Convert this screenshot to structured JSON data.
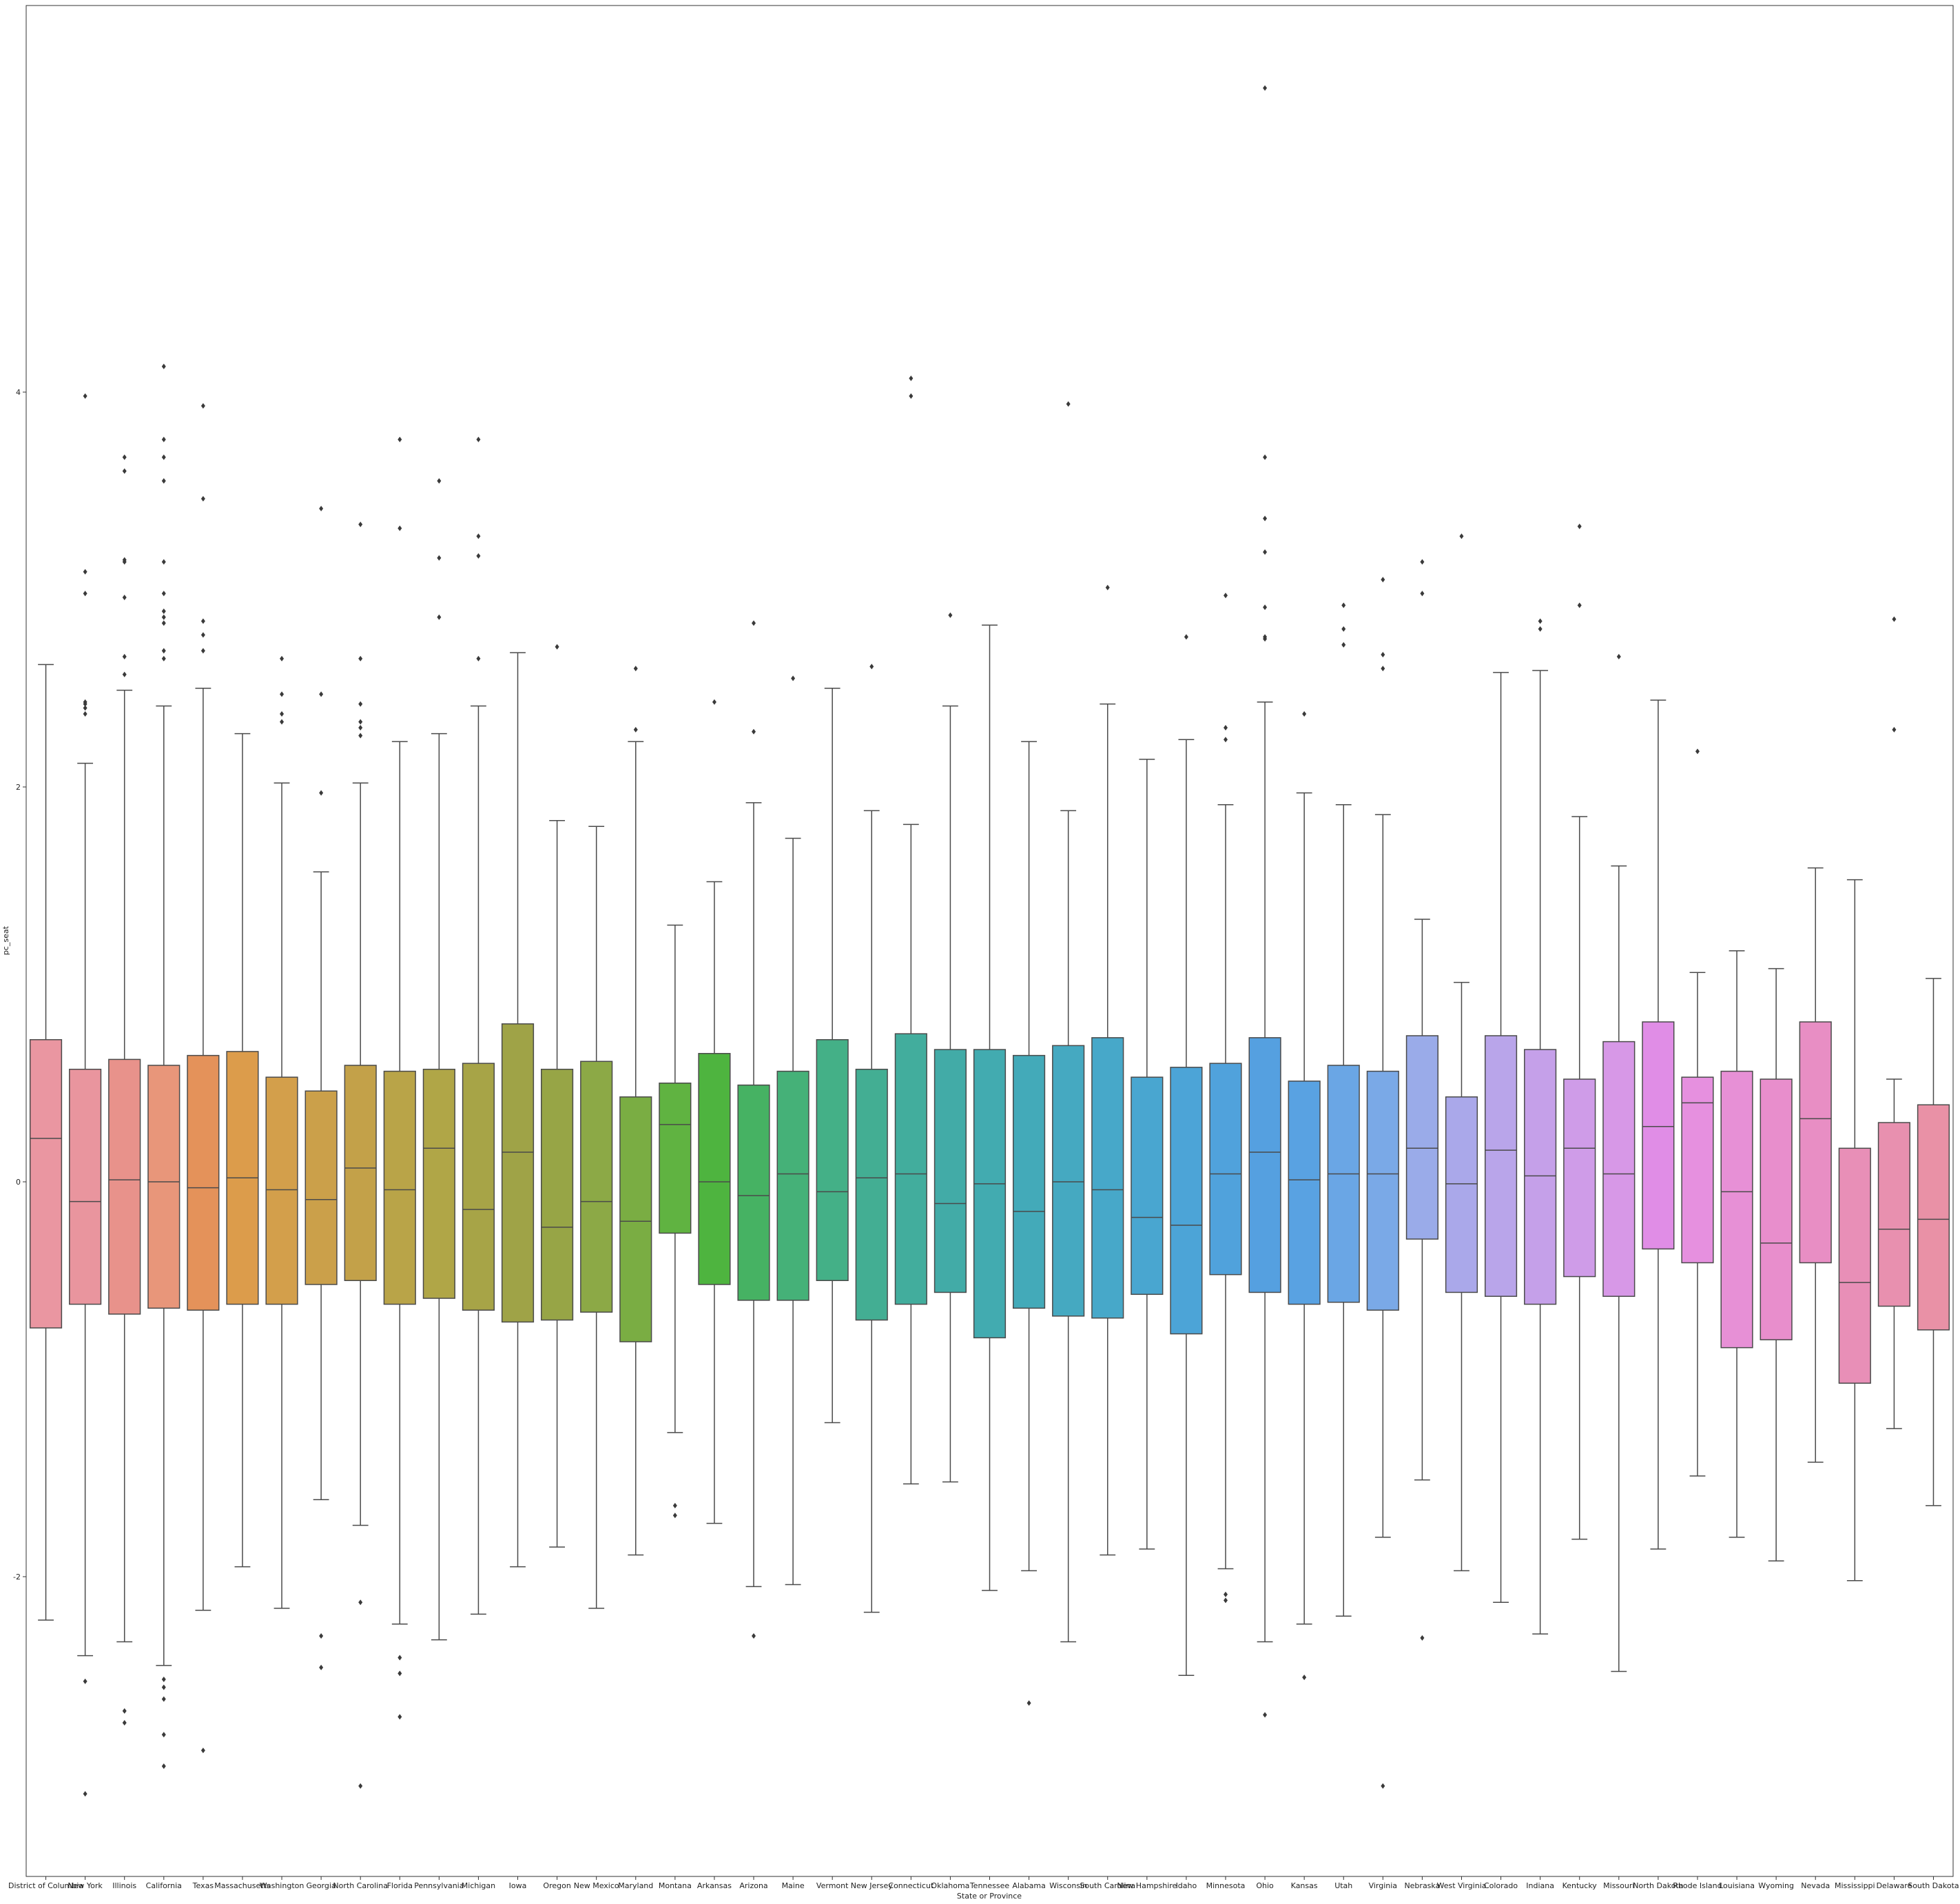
{
  "chart_data": {
    "type": "box",
    "title": "",
    "xlabel": "State or Province",
    "ylabel": "pc_seat",
    "ylim": [
      -3.5,
      5.9
    ],
    "yticks": [
      -2,
      0,
      2,
      4
    ],
    "grid": false,
    "categories": [
      {
        "name": "District of Columbia",
        "color": "#ea96a1",
        "q1": -0.74,
        "median": 0.22,
        "q3": 0.72,
        "wlo": -2.22,
        "whi": 2.62,
        "outliers": []
      },
      {
        "name": "New York",
        "color": "#e9959e",
        "q1": -0.62,
        "median": -0.1,
        "q3": 0.57,
        "wlo": -2.4,
        "whi": 2.12,
        "outliers": [
          2.4,
          2.37,
          2.43,
          2.42,
          2.98,
          3.09,
          3.98,
          -2.53,
          -3.1
        ]
      },
      {
        "name": "Illinois",
        "color": "#e8928b",
        "q1": -0.67,
        "median": 0.01,
        "q3": 0.62,
        "wlo": -2.33,
        "whi": 2.49,
        "outliers": [
          2.57,
          2.66,
          2.96,
          3.14,
          3.15,
          3.6,
          3.67,
          -2.68,
          -2.74
        ]
      },
      {
        "name": "California",
        "color": "#e8967a",
        "q1": -0.64,
        "median": 0.0,
        "q3": 0.59,
        "wlo": -2.45,
        "whi": 2.41,
        "outliers": [
          2.65,
          2.69,
          2.83,
          2.86,
          2.89,
          2.98,
          3.14,
          3.55,
          3.67,
          3.76,
          4.13,
          -2.52,
          -2.56,
          -2.62,
          -2.8,
          -2.96
        ]
      },
      {
        "name": "Texas",
        "color": "#e4925a",
        "q1": -0.65,
        "median": -0.03,
        "q3": 0.64,
        "wlo": -2.17,
        "whi": 2.5,
        "outliers": [
          2.69,
          2.77,
          2.84,
          3.46,
          3.93,
          -2.88
        ]
      },
      {
        "name": "Massachusetts",
        "color": "#dc9c4b",
        "q1": -0.62,
        "median": 0.02,
        "q3": 0.66,
        "wlo": -1.95,
        "whi": 2.27,
        "outliers": []
      },
      {
        "name": "Washington",
        "color": "#d39f4b",
        "q1": -0.62,
        "median": -0.04,
        "q3": 0.53,
        "wlo": -2.16,
        "whi": 2.02,
        "outliers": [
          2.33,
          2.37,
          2.47,
          2.65
        ]
      },
      {
        "name": "Georgia",
        "color": "#cba04a",
        "q1": -0.52,
        "median": -0.09,
        "q3": 0.46,
        "wlo": -1.61,
        "whi": 1.57,
        "outliers": [
          1.97,
          2.47,
          3.41,
          -2.3,
          -2.46
        ]
      },
      {
        "name": "North Carolina",
        "color": "#c3a149",
        "q1": -0.5,
        "median": 0.07,
        "q3": 0.59,
        "wlo": -1.74,
        "whi": 2.02,
        "outliers": [
          2.26,
          2.3,
          2.33,
          2.42,
          2.65,
          3.33,
          -2.13,
          -3.06
        ]
      },
      {
        "name": "Florida",
        "color": "#b9a448",
        "q1": -0.62,
        "median": -0.04,
        "q3": 0.56,
        "wlo": -2.24,
        "whi": 2.23,
        "outliers": [
          3.31,
          3.76,
          -2.41,
          -2.49,
          -2.71
        ]
      },
      {
        "name": "Pennsylvania",
        "color": "#b0a647",
        "q1": -0.59,
        "median": 0.17,
        "q3": 0.57,
        "wlo": -2.32,
        "whi": 2.27,
        "outliers": [
          2.86,
          3.16,
          3.55
        ]
      },
      {
        "name": "Michigan",
        "color": "#a7a447",
        "q1": -0.65,
        "median": -0.14,
        "q3": 0.6,
        "wlo": -2.19,
        "whi": 2.41,
        "outliers": [
          2.65,
          3.17,
          3.27,
          3.76
        ]
      },
      {
        "name": "Iowa",
        "color": "#9fa347",
        "q1": -0.71,
        "median": 0.15,
        "q3": 0.8,
        "wlo": -1.95,
        "whi": 2.68,
        "outliers": []
      },
      {
        "name": "Oregon",
        "color": "#97a546",
        "q1": -0.7,
        "median": -0.23,
        "q3": 0.57,
        "wlo": -1.85,
        "whi": 1.83,
        "outliers": [
          2.71
        ]
      },
      {
        "name": "New Mexico",
        "color": "#8ca946",
        "q1": -0.66,
        "median": -0.1,
        "q3": 0.61,
        "wlo": -2.16,
        "whi": 1.8,
        "outliers": []
      },
      {
        "name": "Maryland",
        "color": "#7aad43",
        "q1": -0.81,
        "median": -0.2,
        "q3": 0.43,
        "wlo": -1.89,
        "whi": 2.23,
        "outliers": [
          2.29,
          2.6
        ]
      },
      {
        "name": "Montana",
        "color": "#60b341",
        "q1": -0.26,
        "median": 0.29,
        "q3": 0.5,
        "wlo": -1.27,
        "whi": 1.3,
        "outliers": [
          -1.69,
          -1.64
        ]
      },
      {
        "name": "Arkansas",
        "color": "#4eb43f",
        "q1": -0.52,
        "median": 0.0,
        "q3": 0.65,
        "wlo": -1.73,
        "whi": 1.52,
        "outliers": [
          2.43
        ]
      },
      {
        "name": "Arizona",
        "color": "#46b263",
        "q1": -0.6,
        "median": -0.07,
        "q3": 0.49,
        "wlo": -2.05,
        "whi": 1.92,
        "outliers": [
          2.28,
          2.83,
          -2.3
        ]
      },
      {
        "name": "Maine",
        "color": "#45b178",
        "q1": -0.6,
        "median": 0.04,
        "q3": 0.56,
        "wlo": -2.04,
        "whi": 1.74,
        "outliers": [
          2.55
        ]
      },
      {
        "name": "Vermont",
        "color": "#44b087",
        "q1": -0.5,
        "median": -0.05,
        "q3": 0.72,
        "wlo": -1.22,
        "whi": 2.5,
        "outliers": []
      },
      {
        "name": "New Jersey",
        "color": "#43ae93",
        "q1": -0.7,
        "median": 0.02,
        "q3": 0.57,
        "wlo": -2.18,
        "whi": 1.88,
        "outliers": [
          2.61
        ]
      },
      {
        "name": "Connecticut",
        "color": "#42ad9d",
        "q1": -0.62,
        "median": 0.04,
        "q3": 0.75,
        "wlo": -1.53,
        "whi": 1.81,
        "outliers": [
          3.98,
          4.07
        ]
      },
      {
        "name": "Oklahoma",
        "color": "#42aba7",
        "q1": -0.56,
        "median": -0.11,
        "q3": 0.67,
        "wlo": -1.52,
        "whi": 2.41,
        "outliers": [
          2.87
        ]
      },
      {
        "name": "Tennessee",
        "color": "#42abb0",
        "q1": -0.79,
        "median": -0.01,
        "q3": 0.67,
        "wlo": -2.07,
        "whi": 2.82,
        "outliers": []
      },
      {
        "name": "Alabama",
        "color": "#43aab9",
        "q1": -0.64,
        "median": -0.15,
        "q3": 0.64,
        "wlo": -1.97,
        "whi": 2.23,
        "outliers": [
          -2.64
        ]
      },
      {
        "name": "Wisconsin",
        "color": "#45a9c1",
        "q1": -0.68,
        "median": 0.0,
        "q3": 0.69,
        "wlo": -2.33,
        "whi": 1.88,
        "outliers": [
          3.94
        ]
      },
      {
        "name": "South Carolina",
        "color": "#47a8c9",
        "q1": -0.69,
        "median": -0.04,
        "q3": 0.73,
        "wlo": -1.89,
        "whi": 2.42,
        "outliers": [
          3.01
        ]
      },
      {
        "name": "New Hampshire",
        "color": "#49a6d0",
        "q1": -0.57,
        "median": -0.18,
        "q3": 0.53,
        "wlo": -1.86,
        "whi": 2.14,
        "outliers": []
      },
      {
        "name": "Idaho",
        "color": "#4ca4d7",
        "q1": -0.77,
        "median": -0.22,
        "q3": 0.58,
        "wlo": -2.5,
        "whi": 2.24,
        "outliers": [
          2.76
        ]
      },
      {
        "name": "Minnesota",
        "color": "#50a2dc",
        "q1": -0.47,
        "median": 0.04,
        "q3": 0.6,
        "wlo": -1.96,
        "whi": 1.91,
        "outliers": [
          2.24,
          2.3,
          2.97,
          -2.12,
          -2.09
        ]
      },
      {
        "name": "Ohio",
        "color": "#55a0e0",
        "q1": -0.56,
        "median": 0.15,
        "q3": 0.73,
        "wlo": -2.33,
        "whi": 2.43,
        "outliers": [
          2.76,
          2.75,
          2.91,
          3.19,
          3.36,
          3.67,
          5.54,
          -2.7
        ]
      },
      {
        "name": "Kansas",
        "color": "#59a2e2",
        "q1": -0.62,
        "median": 0.01,
        "q3": 0.51,
        "wlo": -2.24,
        "whi": 1.97,
        "outliers": [
          2.37,
          -2.51
        ]
      },
      {
        "name": "Utah",
        "color": "#6aa6e5",
        "q1": -0.61,
        "median": 0.04,
        "q3": 0.59,
        "wlo": -2.2,
        "whi": 1.91,
        "outliers": [
          2.72,
          2.8,
          2.92
        ]
      },
      {
        "name": "Virginia",
        "color": "#7aa9e7",
        "q1": -0.65,
        "median": 0.04,
        "q3": 0.56,
        "wlo": -1.8,
        "whi": 1.86,
        "outliers": [
          2.6,
          2.67,
          3.05,
          -3.06
        ]
      },
      {
        "name": "Nebraska",
        "color": "#9aabe9",
        "q1": -0.29,
        "median": 0.17,
        "q3": 0.74,
        "wlo": -1.51,
        "whi": 1.33,
        "outliers": [
          2.98,
          3.14,
          -2.31
        ]
      },
      {
        "name": "West Virginia",
        "color": "#aaa8ea",
        "q1": -0.56,
        "median": -0.01,
        "q3": 0.43,
        "wlo": -1.97,
        "whi": 1.01,
        "outliers": [
          3.27
        ]
      },
      {
        "name": "Colorado",
        "color": "#b9a5ea",
        "q1": -0.58,
        "median": 0.16,
        "q3": 0.74,
        "wlo": -2.13,
        "whi": 2.58,
        "outliers": []
      },
      {
        "name": "Indiana",
        "color": "#c5a0e9",
        "q1": -0.62,
        "median": 0.03,
        "q3": 0.67,
        "wlo": -2.29,
        "whi": 2.59,
        "outliers": [
          2.8,
          2.84
        ]
      },
      {
        "name": "Kentucky",
        "color": "#cf9ce8",
        "q1": -0.48,
        "median": 0.17,
        "q3": 0.52,
        "wlo": -1.81,
        "whi": 1.85,
        "outliers": [
          2.92,
          3.32
        ]
      },
      {
        "name": "Missouri",
        "color": "#d798e7",
        "q1": -0.58,
        "median": 0.04,
        "q3": 0.71,
        "wlo": -2.48,
        "whi": 1.6,
        "outliers": [
          2.66
        ]
      },
      {
        "name": "North Dakota",
        "color": "#e08de6",
        "q1": -0.34,
        "median": 0.28,
        "q3": 0.81,
        "wlo": -1.86,
        "whi": 2.44,
        "outliers": []
      },
      {
        "name": "Rhode Island",
        "color": "#e690df",
        "q1": -0.41,
        "median": 0.4,
        "q3": 0.53,
        "wlo": -1.49,
        "whi": 1.06,
        "outliers": [
          2.18
        ]
      },
      {
        "name": "Louisiana",
        "color": "#e790d6",
        "q1": -0.84,
        "median": -0.05,
        "q3": 0.56,
        "wlo": -1.8,
        "whi": 1.17,
        "outliers": []
      },
      {
        "name": "Wyoming",
        "color": "#e88ecc",
        "q1": -0.8,
        "median": -0.31,
        "q3": 0.52,
        "wlo": -1.92,
        "whi": 1.08,
        "outliers": []
      },
      {
        "name": "Nevada",
        "color": "#e88ec4",
        "q1": -0.41,
        "median": 0.32,
        "q3": 0.81,
        "wlo": -1.42,
        "whi": 1.59,
        "outliers": []
      },
      {
        "name": "Mississippi",
        "color": "#e88fb7",
        "q1": -1.02,
        "median": -0.51,
        "q3": 0.17,
        "wlo": -2.02,
        "whi": 1.53,
        "outliers": []
      },
      {
        "name": "Delaware",
        "color": "#e890af",
        "q1": -0.63,
        "median": -0.24,
        "q3": 0.3,
        "wlo": -1.25,
        "whi": 0.52,
        "outliers": [
          2.29,
          2.85
        ]
      },
      {
        "name": "South Dakota",
        "color": "#e991a6",
        "q1": -0.75,
        "median": -0.19,
        "q3": 0.39,
        "wlo": -1.64,
        "whi": 1.03,
        "outliers": []
      }
    ]
  }
}
